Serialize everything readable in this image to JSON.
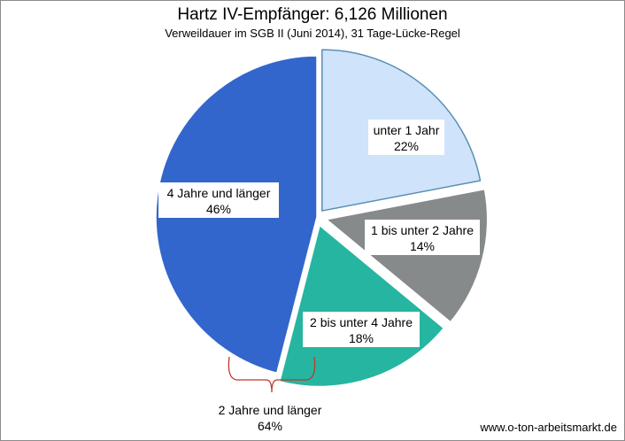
{
  "chart_data": {
    "type": "pie",
    "title": "Hartz IV-Empfänger: 6,126 Millionen",
    "subtitle": "Verweildauer  im SGB II (Juni 2014), 31 Tage-Lücke-Regel",
    "slices": [
      {
        "label": "unter 1 Jahr",
        "value": 22,
        "value_label": "22%",
        "color": "#cfe3fb",
        "stroke": "#5a8fb3"
      },
      {
        "label": "1 bis unter 2 Jahre",
        "value": 14,
        "value_label": "14%",
        "color": "#868a8b",
        "stroke": "#ffffff"
      },
      {
        "label": "2 bis unter 4 Jahre",
        "value": 18,
        "value_label": "18%",
        "color": "#25b5a0",
        "stroke": "#ffffff"
      },
      {
        "label": "4 Jahre und länger",
        "value": 46,
        "value_label": "46%",
        "color": "#3366cc",
        "stroke": "#ffffff"
      }
    ],
    "annotation": {
      "label": "2 Jahre und länger",
      "value_label": "64%",
      "bracket_color": "#c0392b"
    }
  },
  "footer": {
    "source": "www.o-ton-arbeitsmarkt.de"
  }
}
